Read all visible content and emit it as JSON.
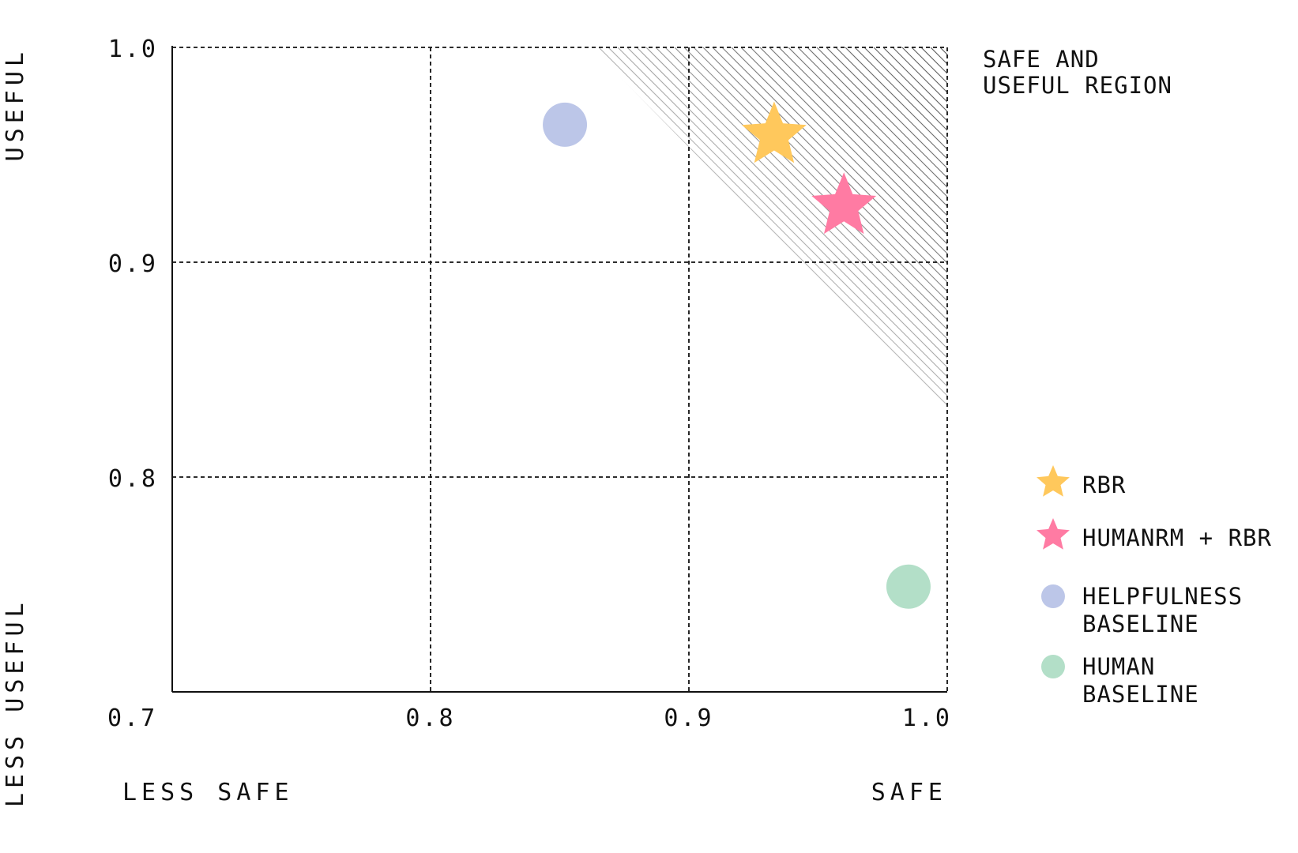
{
  "chart_data": {
    "type": "scatter",
    "xlim": [
      0.7,
      1.0
    ],
    "ylim": [
      0.7,
      1.0
    ],
    "x_ticks": [
      "0.7",
      "0.8",
      "0.9",
      "1.0"
    ],
    "y_ticks": [
      "0.8",
      "0.9",
      "1.0"
    ],
    "x_axis_low_label": "LESS SAFE",
    "x_axis_high_label": "SAFE",
    "y_axis_low_label": "LESS USEFUL",
    "y_axis_high_label": "USEFUL",
    "grid": true,
    "region": {
      "label_line1": "SAFE AND",
      "label_line2": "USEFUL REGION"
    },
    "legend_position": "right",
    "series": [
      {
        "name": "RBR",
        "marker": "star",
        "color": "#FFC85C",
        "x": 0.933,
        "y": 0.959
      },
      {
        "name": "HUMANRM + RBR",
        "marker": "star",
        "color": "#FF7BA3",
        "x": 0.96,
        "y": 0.926
      },
      {
        "name_line1": "HELPFULNESS",
        "name_line2": "BASELINE",
        "marker": "circle",
        "color": "#BCC6E8",
        "x": 0.852,
        "y": 0.964
      },
      {
        "name_line1": "HUMAN",
        "name_line2": "BASELINE",
        "marker": "circle",
        "color": "#B3DFC8",
        "x": 0.985,
        "y": 0.749
      }
    ]
  }
}
